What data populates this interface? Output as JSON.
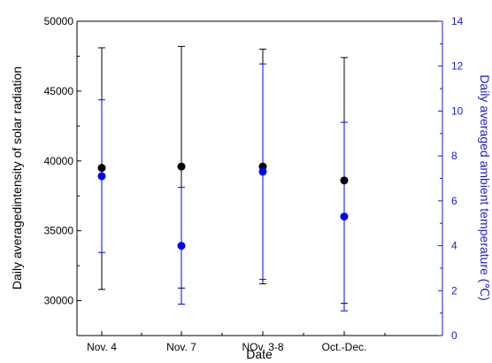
{
  "chart_data": {
    "type": "scatter",
    "title": "",
    "xlabel": "Date",
    "ylabel_left": "Daily averagedintensity of solar radiation",
    "ylabel_right": "Daily averaged ambient temperature (℃)",
    "categories": [
      "Nov. 4",
      "Nov. 7",
      "NOv. 3-8",
      "Oct.-Dec."
    ],
    "y_left": {
      "range": [
        27500,
        50000
      ],
      "ticks": [
        30000,
        35000,
        40000,
        45000,
        50000
      ],
      "tick_labels": [
        "30000",
        "35000",
        "40000",
        "45000",
        "50000"
      ]
    },
    "y_right": {
      "range": [
        0,
        14
      ],
      "ticks": [
        0,
        2,
        4,
        6,
        8,
        10,
        12,
        14
      ],
      "tick_labels": [
        "0",
        "2",
        "4",
        "6",
        "8",
        "10",
        "12",
        "14"
      ]
    },
    "series": [
      {
        "axis": "left",
        "color": "#000000",
        "values": [
          39500,
          39600,
          39600,
          38600
        ],
        "err_low": [
          30800,
          30900,
          31200,
          29800
        ],
        "err_high": [
          48100,
          48200,
          48000,
          47400
        ]
      },
      {
        "axis": "right",
        "color": "#0000ff",
        "values": [
          7.1,
          4.0,
          7.3,
          5.3
        ],
        "err_low": [
          3.7,
          1.4,
          2.5,
          1.1
        ],
        "err_high": [
          10.5,
          6.6,
          12.1,
          9.5
        ]
      }
    ],
    "grid": false,
    "colors": {
      "left_axis": "#000000",
      "right_axis": "#1a1ad4"
    }
  }
}
